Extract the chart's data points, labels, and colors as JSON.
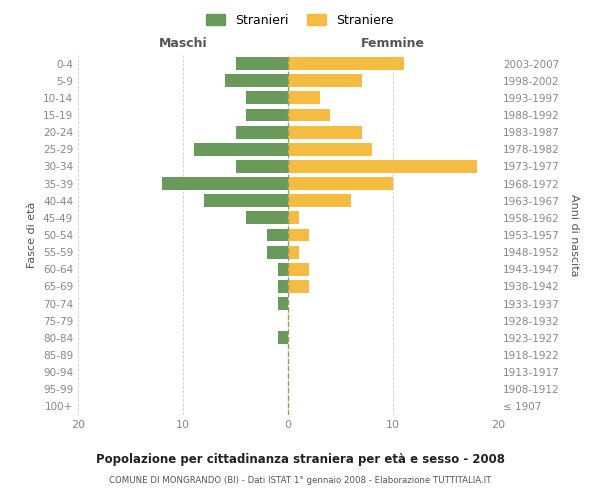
{
  "age_groups": [
    "100+",
    "95-99",
    "90-94",
    "85-89",
    "80-84",
    "75-79",
    "70-74",
    "65-69",
    "60-64",
    "55-59",
    "50-54",
    "45-49",
    "40-44",
    "35-39",
    "30-34",
    "25-29",
    "20-24",
    "15-19",
    "10-14",
    "5-9",
    "0-4"
  ],
  "birth_years": [
    "≤ 1907",
    "1908-1912",
    "1913-1917",
    "1918-1922",
    "1923-1927",
    "1928-1932",
    "1933-1937",
    "1938-1942",
    "1943-1947",
    "1948-1952",
    "1953-1957",
    "1958-1962",
    "1963-1967",
    "1968-1972",
    "1973-1977",
    "1978-1982",
    "1983-1987",
    "1988-1992",
    "1993-1997",
    "1998-2002",
    "2003-2007"
  ],
  "maschi": [
    0,
    0,
    0,
    0,
    1,
    0,
    1,
    1,
    1,
    2,
    2,
    4,
    8,
    12,
    5,
    9,
    5,
    4,
    4,
    6,
    5
  ],
  "femmine": [
    0,
    0,
    0,
    0,
    0,
    0,
    0,
    2,
    2,
    1,
    2,
    1,
    6,
    10,
    18,
    8,
    7,
    4,
    3,
    7,
    11
  ],
  "maschi_color": "#6a9a5b",
  "femmine_color": "#f5bc42",
  "background_color": "#ffffff",
  "grid_color": "#cccccc",
  "title": "Popolazione per cittadinanza straniera per età e sesso - 2008",
  "subtitle": "COMUNE DI MONGRANDO (BI) - Dati ISTAT 1° gennaio 2008 - Elaborazione TUTTITALIA.IT",
  "xlabel_left": "Maschi",
  "xlabel_right": "Femmine",
  "ylabel_left": "Fasce di età",
  "ylabel_right": "Anni di nascita",
  "legend_maschi": "Stranieri",
  "legend_femmine": "Straniere",
  "xlim": 20,
  "bar_height": 0.75
}
